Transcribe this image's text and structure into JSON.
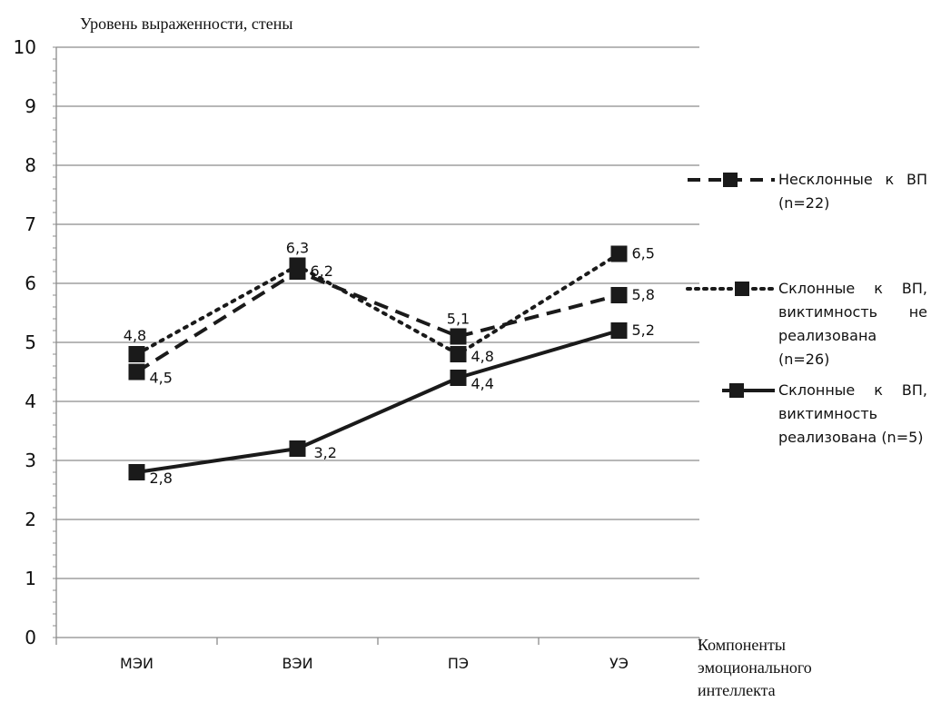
{
  "chart_data": {
    "type": "line",
    "title": "",
    "ylabel": "Уровень выраженности, стены",
    "xlabel": "Компоненты эмоционального интеллекта",
    "ylim": [
      0,
      10
    ],
    "yticks": [
      0,
      1,
      2,
      3,
      4,
      5,
      6,
      7,
      8,
      9,
      10
    ],
    "categories": [
      "МЭИ",
      "ВЭИ",
      "ПЭ",
      "УЭ"
    ],
    "grid": true,
    "legend_position": "right",
    "series": [
      {
        "name": "Несклонные к ВП (n=22)",
        "style": "dashed",
        "marker": "square",
        "color": "#1a1a1a",
        "values": [
          4.5,
          6.2,
          5.1,
          5.8
        ],
        "labels": [
          "4,5",
          "6,2",
          "5,1",
          "5,8"
        ]
      },
      {
        "name": "Склонные к ВП, виктимность не реализована (n=26)",
        "style": "dotted",
        "marker": "square",
        "color": "#1a1a1a",
        "values": [
          4.8,
          6.3,
          4.8,
          6.5
        ],
        "labels": [
          "4,8",
          "6,3",
          "4,8",
          "6,5"
        ]
      },
      {
        "name": "Склонные к ВП, виктимность реализована (n=5)",
        "style": "solid",
        "marker": "square",
        "color": "#1a1a1a",
        "values": [
          2.8,
          3.2,
          4.4,
          5.2
        ],
        "labels": [
          "2,8",
          "3,2",
          "4,4",
          "5,2"
        ]
      }
    ]
  }
}
